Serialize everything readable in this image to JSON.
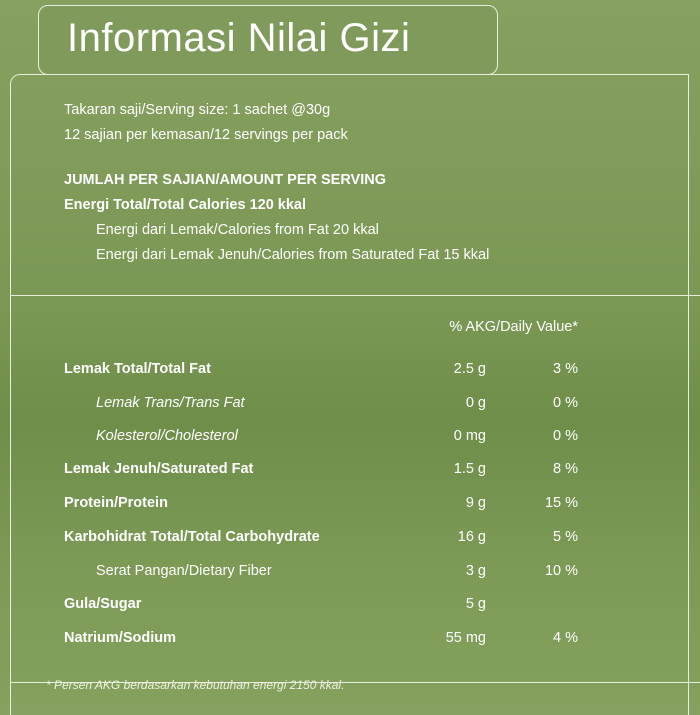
{
  "title": "Informasi Nilai Gizi",
  "serving_size": "Takaran saji/Serving size: 1 sachet @30g",
  "servings_per_pack": "12 sajian per kemasan/12 servings per pack",
  "amount_header": "JUMLAH PER SAJIAN/AMOUNT PER SERVING",
  "total_calories": "Energi Total/Total Calories 120 kkal",
  "calories_fat": "Energi dari Lemak/Calories from Fat 20 kkal",
  "calories_sat_fat": "Energi dari Lemak Jenuh/Calories from Saturated Fat 15 kkal",
  "dv_header": "% AKG/Daily Value*",
  "rows": [
    {
      "label": "Lemak Total/Total Fat",
      "amount": "2.5 g",
      "dv": "3 %",
      "style": "bold"
    },
    {
      "label": "Lemak Trans/Trans Fat",
      "amount": "0 g",
      "dv": "0 %",
      "style": "italic-indent"
    },
    {
      "label": "Kolesterol/Cholesterol",
      "amount": "0 mg",
      "dv": "0 %",
      "style": "italic-indent"
    },
    {
      "label": "Lemak Jenuh/Saturated Fat",
      "amount": "1.5 g",
      "dv": "8 %",
      "style": "bold"
    },
    {
      "label": "Protein/Protein",
      "amount": "9 g",
      "dv": "15 %",
      "style": "bold"
    },
    {
      "label": "Karbohidrat Total/Total Carbohydrate",
      "amount": "16 g",
      "dv": "5 %",
      "style": "bold"
    },
    {
      "label": "Serat Pangan/Dietary Fiber",
      "amount": "3 g",
      "dv": "10 %",
      "style": "indent"
    },
    {
      "label": "Gula/Sugar",
      "amount": "5 g",
      "dv": "",
      "style": "bold"
    },
    {
      "label": "Natrium/Sodium",
      "amount": "55 mg",
      "dv": "4 %",
      "style": "bold"
    }
  ],
  "footnote": "*  Persen AKG berdasarkan kebutuhan energi 2150 kkal."
}
